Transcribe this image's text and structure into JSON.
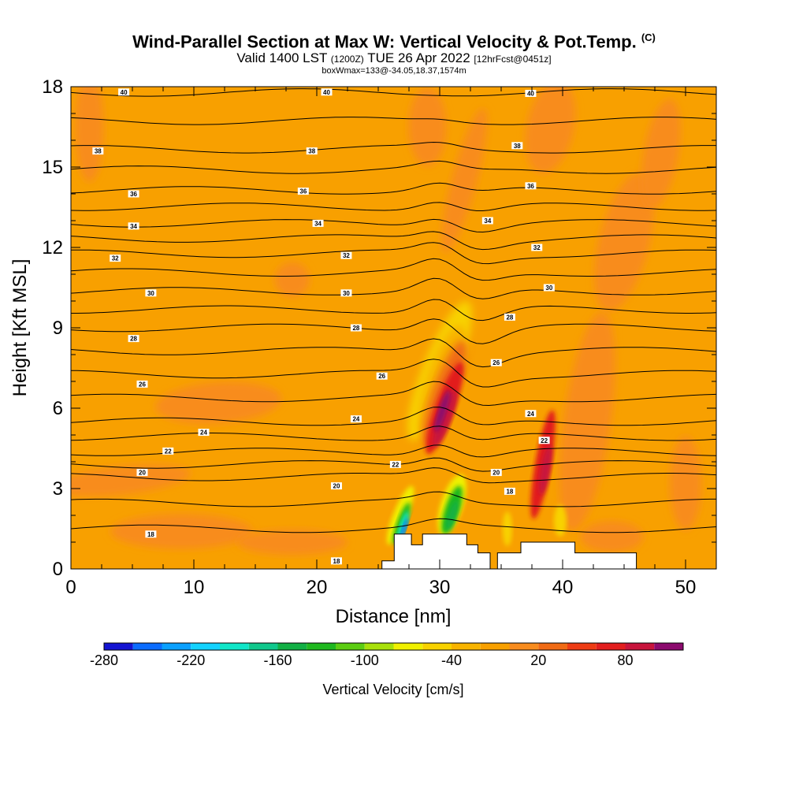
{
  "title": {
    "main": "Wind-Parallel Section at Max W: Vertical Velocity & Pot.Temp.",
    "copyright": "(C)",
    "valid_prefix": "Valid 1400 LST",
    "valid_utc": "(1200Z)",
    "valid_date": "TUE 26 Apr 2022",
    "forecast": "[12hrFcst@0451z]",
    "box_info": "boxWmax=133@-34.05,18.37,1574m"
  },
  "chart_data": {
    "type": "heatmap",
    "xlabel": "Distance [nm]",
    "ylabel": "Height [Kft MSL]",
    "xlim": [
      0,
      52.5
    ],
    "ylim": [
      0,
      18
    ],
    "x_ticks": [
      0,
      10,
      20,
      30,
      40,
      50
    ],
    "y_ticks": [
      0,
      3,
      6,
      9,
      12,
      15,
      18
    ],
    "colorbar": {
      "label": "Vertical Velocity [cm/s]",
      "tick_labels": [
        "-280",
        "-220",
        "-160",
        "-100",
        "-40",
        "20",
        "80"
      ],
      "tick_values": [
        -280,
        -220,
        -160,
        -100,
        -40,
        20,
        80
      ],
      "levels": [
        -280,
        -260,
        -240,
        -220,
        -200,
        -180,
        -160,
        -140,
        -120,
        -100,
        -80,
        -60,
        -40,
        -20,
        0,
        20,
        40,
        60,
        80,
        100,
        120
      ],
      "colors": [
        "#1414d2",
        "#0b6cff",
        "#0aa0ff",
        "#13d2ff",
        "#0fe6c8",
        "#10c88c",
        "#12b045",
        "#1fb81f",
        "#5ccd12",
        "#a8e00a",
        "#f0f000",
        "#f8d200",
        "#f8b400",
        "#f8a000",
        "#f88c1e",
        "#f06a14",
        "#ee3c14",
        "#e21e1e",
        "#c8143c",
        "#8c0a6e"
      ]
    },
    "theta_contour_labels": [
      {
        "value": "40",
        "x": 4.3,
        "y": 17.8
      },
      {
        "value": "40",
        "x": 20.8,
        "y": 17.8
      },
      {
        "value": "40",
        "x": 37.4,
        "y": 17.75
      },
      {
        "value": "38",
        "x": 2.2,
        "y": 15.6
      },
      {
        "value": "38",
        "x": 19.6,
        "y": 15.6
      },
      {
        "value": "38",
        "x": 36.3,
        "y": 15.8
      },
      {
        "value": "36",
        "x": 5.1,
        "y": 14.0
      },
      {
        "value": "36",
        "x": 18.9,
        "y": 14.1
      },
      {
        "value": "36",
        "x": 37.4,
        "y": 14.3
      },
      {
        "value": "34",
        "x": 5.1,
        "y": 12.8
      },
      {
        "value": "34",
        "x": 20.1,
        "y": 12.9
      },
      {
        "value": "34",
        "x": 33.9,
        "y": 13.0
      },
      {
        "value": "32",
        "x": 3.6,
        "y": 11.6
      },
      {
        "value": "32",
        "x": 22.4,
        "y": 11.7
      },
      {
        "value": "32",
        "x": 37.9,
        "y": 12.0
      },
      {
        "value": "30",
        "x": 6.5,
        "y": 10.3
      },
      {
        "value": "30",
        "x": 22.4,
        "y": 10.3
      },
      {
        "value": "30",
        "x": 38.9,
        "y": 10.5
      },
      {
        "value": "28",
        "x": 5.1,
        "y": 8.6
      },
      {
        "value": "28",
        "x": 23.2,
        "y": 9.0
      },
      {
        "value": "28",
        "x": 35.7,
        "y": 9.4
      },
      {
        "value": "26",
        "x": 5.8,
        "y": 6.9
      },
      {
        "value": "26",
        "x": 25.3,
        "y": 7.2
      },
      {
        "value": "26",
        "x": 34.6,
        "y": 7.7
      },
      {
        "value": "24",
        "x": 10.8,
        "y": 5.1
      },
      {
        "value": "24",
        "x": 23.2,
        "y": 5.6
      },
      {
        "value": "24",
        "x": 37.4,
        "y": 5.8
      },
      {
        "value": "22",
        "x": 7.9,
        "y": 4.4
      },
      {
        "value": "22",
        "x": 26.4,
        "y": 3.9
      },
      {
        "value": "22",
        "x": 38.5,
        "y": 4.8
      },
      {
        "value": "20",
        "x": 5.8,
        "y": 3.6
      },
      {
        "value": "20",
        "x": 21.6,
        "y": 3.1
      },
      {
        "value": "20",
        "x": 34.6,
        "y": 3.6
      },
      {
        "value": "18",
        "x": 6.5,
        "y": 1.3
      },
      {
        "value": "18",
        "x": 21.6,
        "y": 0.3
      },
      {
        "value": "18",
        "x": 35.7,
        "y": 2.9
      }
    ],
    "terrain_profile": [
      [
        25.3,
        0
      ],
      [
        25.3,
        0.3
      ],
      [
        26.3,
        0.3
      ],
      [
        26.3,
        1.3
      ],
      [
        27.7,
        1.3
      ],
      [
        27.7,
        0.9
      ],
      [
        28.6,
        0.9
      ],
      [
        28.6,
        1.3
      ],
      [
        32.2,
        1.3
      ],
      [
        32.2,
        0.9
      ],
      [
        33.1,
        0.9
      ],
      [
        33.1,
        0.6
      ],
      [
        34.1,
        0.6
      ],
      [
        34.1,
        0
      ],
      [
        34.7,
        0
      ],
      [
        34.7,
        0.6
      ],
      [
        36.6,
        0.6
      ],
      [
        36.6,
        1.0
      ],
      [
        41.0,
        1.0
      ],
      [
        41.0,
        0.6
      ],
      [
        46.0,
        0.6
      ],
      [
        46.0,
        0
      ]
    ]
  }
}
